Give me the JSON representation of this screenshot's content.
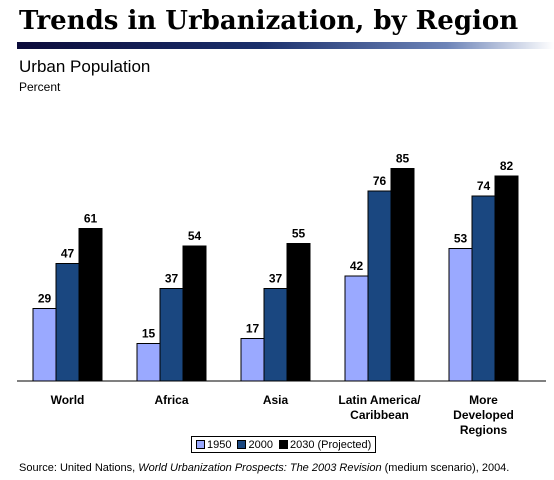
{
  "page": {
    "title": "Trends in Urbanization, by Region",
    "subtitle": "Urban Population",
    "source_prefix": "Source: United Nations, ",
    "source_title": "World Urbanization Prospects: The 2003 Revision",
    "source_suffix": " (medium scenario), 2004."
  },
  "colors": {
    "1950": "#9aa9ff",
    "2000": "#1a4780",
    "2030": "#000000",
    "title_rule": "#1a2f6b"
  },
  "chart_data": {
    "type": "bar",
    "title": "Urban Population",
    "ylabel": "Percent",
    "xlabel": "",
    "categories": [
      [
        "World"
      ],
      [
        "Africa"
      ],
      [
        "Asia"
      ],
      [
        "Latin America/",
        "Caribbean"
      ],
      [
        "More",
        "Developed",
        "Regions"
      ]
    ],
    "series": [
      {
        "name": "1950",
        "values": [
          29,
          15,
          17,
          42,
          53
        ]
      },
      {
        "name": "2000",
        "values": [
          47,
          37,
          37,
          76,
          74
        ]
      },
      {
        "name": "2030 (Projected)",
        "values": [
          61,
          54,
          55,
          85,
          82
        ]
      }
    ],
    "ylim": [
      0,
      100
    ],
    "grid": false,
    "legend": "bottom"
  }
}
